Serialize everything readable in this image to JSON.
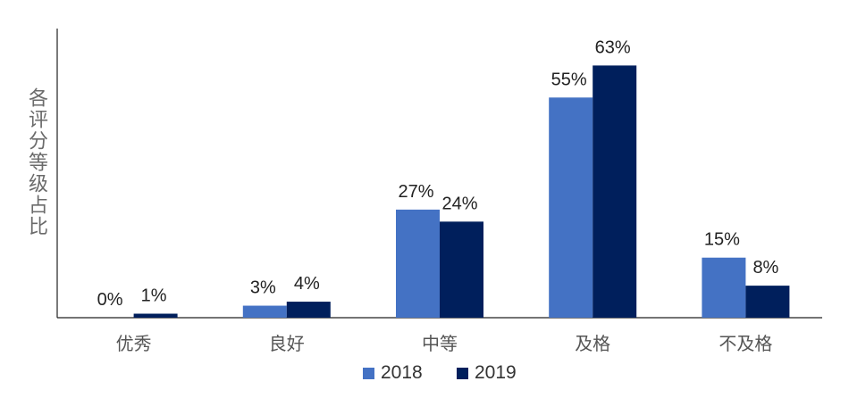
{
  "chart_data": {
    "type": "bar",
    "title": "",
    "ylabel": "各评分等级占比",
    "xlabel": "",
    "categories": [
      "优秀",
      "良好",
      "中等",
      "及格",
      "不及格"
    ],
    "series": [
      {
        "name": "2018",
        "values": [
          0,
          3,
          27,
          55,
          15
        ],
        "labels": [
          "0%",
          "3%",
          "27%",
          "55%",
          "15%"
        ],
        "color": "#4472c4"
      },
      {
        "name": "2019",
        "values": [
          1,
          4,
          24,
          63,
          8
        ],
        "labels": [
          "1%",
          "4%",
          "24%",
          "63%",
          "8%"
        ],
        "color": "#001f5c"
      }
    ],
    "ylim": [
      0,
      70
    ],
    "unit": "%",
    "grid": false,
    "legend_position": "bottom"
  }
}
